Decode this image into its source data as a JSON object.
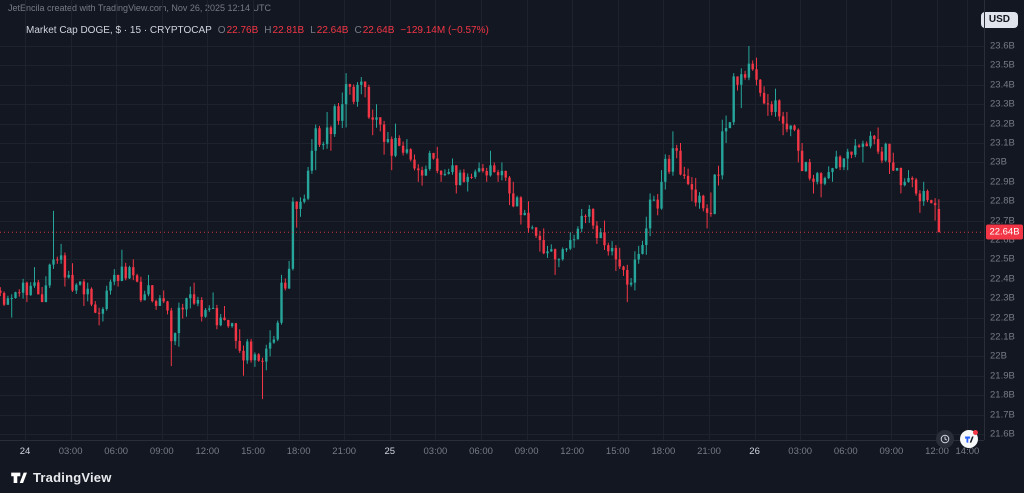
{
  "header": {
    "attribution": "JetEncila created with TradingView.com, Nov 26, 2025 12:14 UTC",
    "currency_button": "USD"
  },
  "legend": {
    "symbol": "Market Cap DOGE, $ · 15 · CRYPTOCAP",
    "ohlc": [
      {
        "k": "O",
        "v": "22.76B"
      },
      {
        "k": "H",
        "v": "22.81B"
      },
      {
        "k": "L",
        "v": "22.64B"
      },
      {
        "k": "C",
        "v": "22.64B"
      }
    ],
    "change": "−129.14M (−0.57%)"
  },
  "footer": {
    "brand": "TradingView"
  },
  "floating_buttons": [
    {
      "icon": "clock-icon"
    },
    {
      "icon": "tradingview-logo-icon"
    }
  ],
  "colors": {
    "background": "#131722",
    "grid": "#1e222d",
    "up": "#26a69a",
    "down": "#f23645",
    "axis_text": "#787b86",
    "text": "#d1d4dc",
    "price_line": "#f23645"
  },
  "chart_data": {
    "type": "candlestick",
    "title": "Market Cap DOGE, $ · 15 · CRYPTOCAP",
    "interval": "15m",
    "price_unit": "B (USD)",
    "price_range": [
      21.6,
      23.6
    ],
    "current_price": 22.64,
    "current_price_label": "22.64B",
    "ohlc_current": {
      "open": 22.76,
      "high": 22.81,
      "low": 22.64,
      "close": 22.64,
      "change": "−129.14M",
      "change_pct": "−0.57%"
    },
    "y_ticks": [
      {
        "v": 23.6,
        "label": "23.6B"
      },
      {
        "v": 23.5,
        "label": "23.5B"
      },
      {
        "v": 23.4,
        "label": "23.4B"
      },
      {
        "v": 23.3,
        "label": "23.3B"
      },
      {
        "v": 23.2,
        "label": "23.2B"
      },
      {
        "v": 23.1,
        "label": "23.1B"
      },
      {
        "v": 23.0,
        "label": "23B"
      },
      {
        "v": 22.9,
        "label": "22.9B"
      },
      {
        "v": 22.8,
        "label": "22.8B"
      },
      {
        "v": 22.7,
        "label": "22.7B"
      },
      {
        "v": 22.6,
        "label": "22.6B"
      },
      {
        "v": 22.5,
        "label": "22.5B"
      },
      {
        "v": 22.4,
        "label": "22.4B"
      },
      {
        "v": 22.3,
        "label": "22.3B"
      },
      {
        "v": 22.2,
        "label": "22.2B"
      },
      {
        "v": 22.1,
        "label": "22.1B"
      },
      {
        "v": 22.0,
        "label": "22B"
      },
      {
        "v": 21.9,
        "label": "21.9B"
      },
      {
        "v": 21.8,
        "label": "21.8B"
      },
      {
        "v": 21.7,
        "label": "21.7B"
      },
      {
        "v": 21.6,
        "label": "21.6B"
      }
    ],
    "x_ticks": [
      {
        "h": 0,
        "label": "24",
        "day": true
      },
      {
        "h": 3,
        "label": "03:00"
      },
      {
        "h": 6,
        "label": "06:00"
      },
      {
        "h": 9,
        "label": "09:00"
      },
      {
        "h": 12,
        "label": "12:00"
      },
      {
        "h": 15,
        "label": "15:00"
      },
      {
        "h": 18,
        "label": "18:00"
      },
      {
        "h": 21,
        "label": "21:00"
      },
      {
        "h": 24,
        "label": "25",
        "day": true
      },
      {
        "h": 27,
        "label": "03:00"
      },
      {
        "h": 30,
        "label": "06:00"
      },
      {
        "h": 33,
        "label": "09:00"
      },
      {
        "h": 36,
        "label": "12:00"
      },
      {
        "h": 39,
        "label": "15:00"
      },
      {
        "h": 42,
        "label": "18:00"
      },
      {
        "h": 45,
        "label": "21:00"
      },
      {
        "h": 48,
        "label": "26",
        "day": true
      },
      {
        "h": 51,
        "label": "03:00"
      },
      {
        "h": 54,
        "label": "06:00"
      },
      {
        "h": 57,
        "label": "09:00"
      },
      {
        "h": 60,
        "label": "12:00"
      },
      {
        "h": 62,
        "label": "14:00"
      }
    ],
    "t_start": -2,
    "candles_hourly_ohlc": [
      [
        22.35,
        22.42,
        22.26,
        22.3
      ],
      [
        22.3,
        22.4,
        22.2,
        22.38
      ],
      [
        22.38,
        22.46,
        22.28,
        22.32
      ],
      [
        22.32,
        22.75,
        22.28,
        22.5
      ],
      [
        22.5,
        22.58,
        22.36,
        22.42
      ],
      [
        22.42,
        22.48,
        22.26,
        22.32
      ],
      [
        22.32,
        22.38,
        22.16,
        22.22
      ],
      [
        22.22,
        22.45,
        22.18,
        22.42
      ],
      [
        22.42,
        22.55,
        22.36,
        22.46
      ],
      [
        22.46,
        22.5,
        22.28,
        22.32
      ],
      [
        22.32,
        22.42,
        22.24,
        22.3
      ],
      [
        22.3,
        22.34,
        21.95,
        22.12
      ],
      [
        22.12,
        22.36,
        22.05,
        22.32
      ],
      [
        22.32,
        22.38,
        22.18,
        22.24
      ],
      [
        22.24,
        22.33,
        22.14,
        22.2
      ],
      [
        22.2,
        22.26,
        22.04,
        22.08
      ],
      [
        22.08,
        22.14,
        21.9,
        21.98
      ],
      [
        21.98,
        22.06,
        21.78,
        22.04
      ],
      [
        22.04,
        22.42,
        22.0,
        22.38
      ],
      [
        22.38,
        22.82,
        22.34,
        22.76
      ],
      [
        22.76,
        23.12,
        22.72,
        23.06
      ],
      [
        23.06,
        23.26,
        22.96,
        23.18
      ],
      [
        23.18,
        23.36,
        23.06,
        23.3
      ],
      [
        23.3,
        23.46,
        23.18,
        23.4
      ],
      [
        23.4,
        23.44,
        23.14,
        23.22
      ],
      [
        23.22,
        23.3,
        23.04,
        23.12
      ],
      [
        23.12,
        23.2,
        22.96,
        23.05
      ],
      [
        23.05,
        23.12,
        22.9,
        22.96
      ],
      [
        22.96,
        23.06,
        22.88,
        23.02
      ],
      [
        23.02,
        23.08,
        22.9,
        22.95
      ],
      [
        22.95,
        23.02,
        22.84,
        22.9
      ],
      [
        22.9,
        23.0,
        22.85,
        22.97
      ],
      [
        22.97,
        23.06,
        22.9,
        22.95
      ],
      [
        22.95,
        23.0,
        22.78,
        22.84
      ],
      [
        22.84,
        22.9,
        22.68,
        22.74
      ],
      [
        22.74,
        22.8,
        22.54,
        22.6
      ],
      [
        22.6,
        22.66,
        22.42,
        22.5
      ],
      [
        22.5,
        22.64,
        22.46,
        22.6
      ],
      [
        22.6,
        22.76,
        22.56,
        22.72
      ],
      [
        22.72,
        22.78,
        22.58,
        22.64
      ],
      [
        22.64,
        22.7,
        22.44,
        22.5
      ],
      [
        22.5,
        22.56,
        22.28,
        22.38
      ],
      [
        22.38,
        22.72,
        22.34,
        22.66
      ],
      [
        22.66,
        22.96,
        22.62,
        22.9
      ],
      [
        22.9,
        23.16,
        22.86,
        23.06
      ],
      [
        23.06,
        23.1,
        22.8,
        22.86
      ],
      [
        22.86,
        22.92,
        22.66,
        22.74
      ],
      [
        22.74,
        23.22,
        22.72,
        23.16
      ],
      [
        23.16,
        23.46,
        23.1,
        23.4
      ],
      [
        23.4,
        23.6,
        23.28,
        23.48
      ],
      [
        23.48,
        23.54,
        23.24,
        23.3
      ],
      [
        23.3,
        23.38,
        23.14,
        23.2
      ],
      [
        23.2,
        23.26,
        23.0,
        23.06
      ],
      [
        23.06,
        23.1,
        22.84,
        22.9
      ],
      [
        22.9,
        22.98,
        22.82,
        22.95
      ],
      [
        22.95,
        23.06,
        22.9,
        23.02
      ],
      [
        23.02,
        23.12,
        22.96,
        23.08
      ],
      [
        23.08,
        23.16,
        23.0,
        23.12
      ],
      [
        23.12,
        23.18,
        22.94,
        23.0
      ],
      [
        23.0,
        23.05,
        22.84,
        22.9
      ],
      [
        22.9,
        22.96,
        22.74,
        22.8
      ],
      [
        22.8,
        22.9,
        22.7,
        22.78
      ]
    ],
    "final_candle_ohlc": [
      22.76,
      22.81,
      22.64,
      22.64
    ]
  }
}
